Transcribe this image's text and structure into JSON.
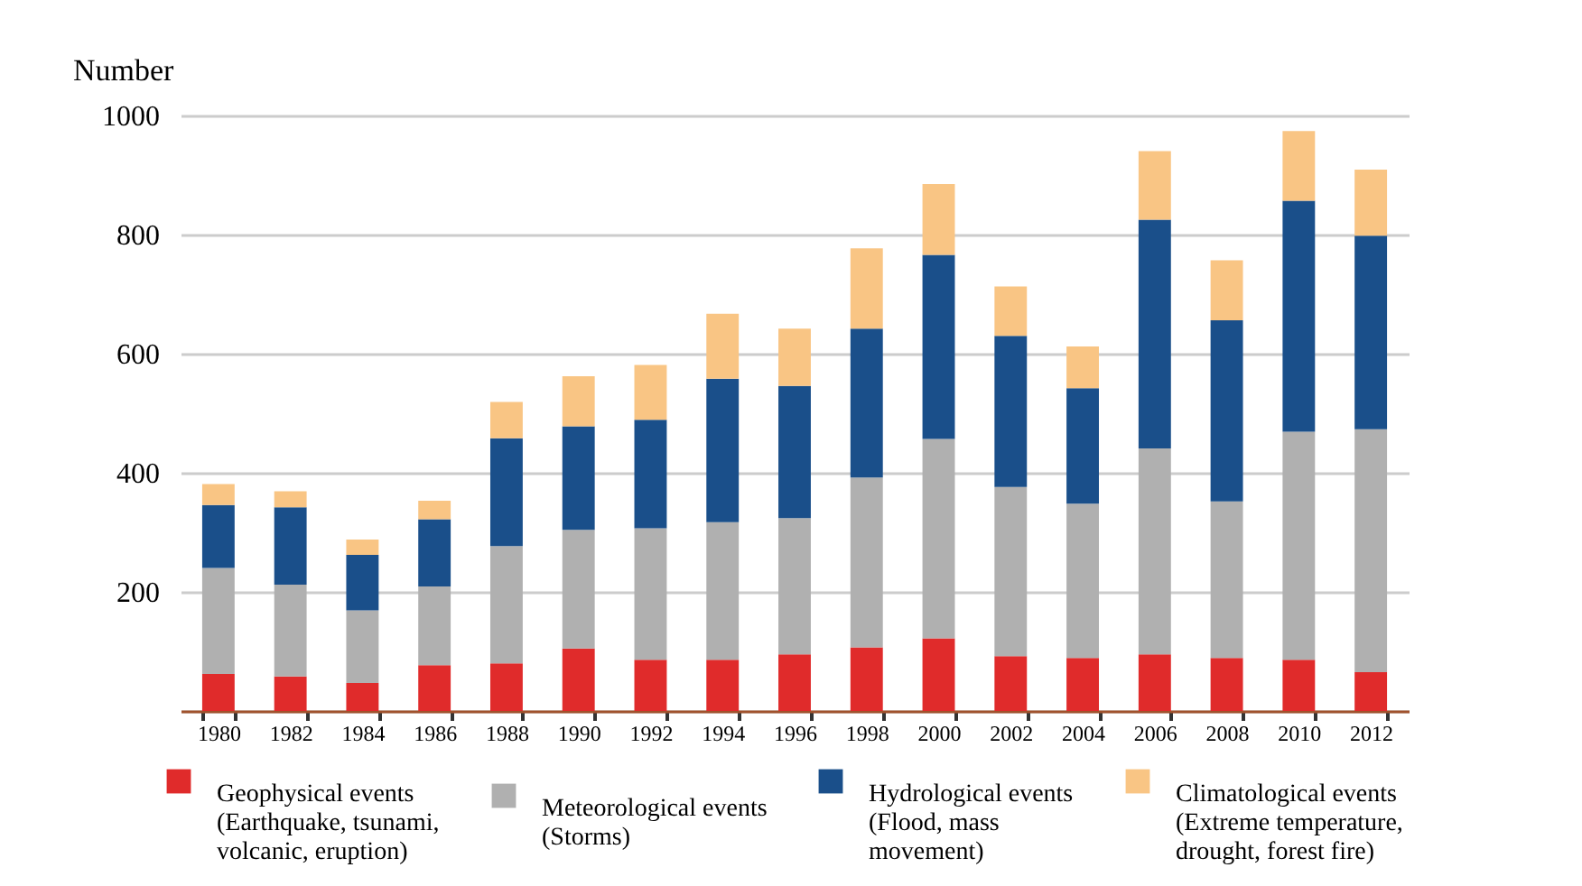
{
  "chart_data": {
    "type": "bar",
    "stacked": true,
    "ylabel": "Number",
    "categories": [
      "1980",
      "1982",
      "1984",
      "1986",
      "1988",
      "1990",
      "1992",
      "1994",
      "1996",
      "1998",
      "2000",
      "2002",
      "2004",
      "2006",
      "2008",
      "2010",
      "2012"
    ],
    "ylim": [
      0,
      1000
    ],
    "yticks": [
      {
        "value": 0,
        "label": null
      },
      200,
      400,
      600,
      800,
      1000
    ],
    "grid": "y",
    "legend": "bottom",
    "series": [
      {
        "name": "Geophysical events (Earthquake, tsunami, volcanic, eruption)",
        "color": "#e02b2b",
        "values": [
          62,
          58,
          47,
          77,
          80,
          105,
          86,
          86,
          95,
          107,
          122,
          92,
          89,
          95,
          89,
          86,
          65
        ]
      },
      {
        "name": "Meteorological events (Storms)",
        "color": "#b0b0b0",
        "values": [
          178,
          154,
          122,
          132,
          197,
          199,
          221,
          231,
          229,
          285,
          335,
          284,
          259,
          346,
          263,
          383,
          408
        ]
      },
      {
        "name": "Hydrological events (Flood, mass movement)",
        "color": "#1a4f8a",
        "values": [
          106,
          130,
          93,
          113,
          181,
          174,
          182,
          241,
          222,
          250,
          309,
          254,
          194,
          384,
          304,
          388,
          325
        ]
      },
      {
        "name": "Climatological events (Extreme temperature, drought, forest fire)",
        "color": "#f9c584",
        "values": [
          35,
          27,
          26,
          31,
          61,
          84,
          92,
          109,
          96,
          135,
          119,
          83,
          70,
          115,
          101,
          117,
          111
        ]
      }
    ]
  }
}
